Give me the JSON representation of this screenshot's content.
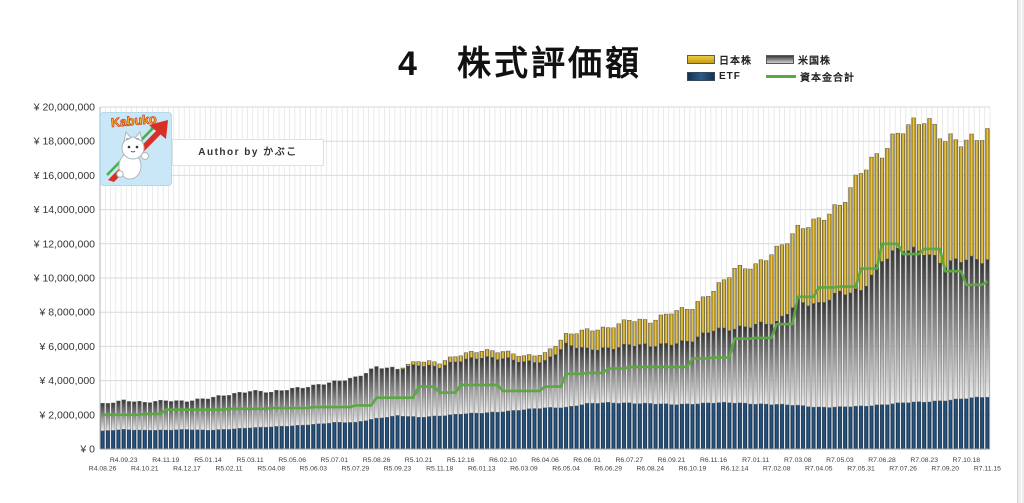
{
  "page": {
    "title": "4　株式評価額"
  },
  "logo": {
    "text": "Kabuko"
  },
  "author_box": {
    "text": "Author by かぶこ"
  },
  "legend": {
    "items": [
      {
        "label": "日本株",
        "type": "swatch",
        "color": "#C9A227"
      },
      {
        "label": "米国株",
        "type": "swatch",
        "color": "#3A3A3A"
      },
      {
        "label": "ETF",
        "type": "swatch",
        "color": "#1F4568"
      },
      {
        "label": "資本金合計",
        "type": "line",
        "color": "#5BA843"
      }
    ]
  },
  "chart_data": {
    "type": "bar",
    "subtype": "stacked-weekly-bars-with-step-line",
    "title": "4　株式評価額",
    "unit": "million JPY",
    "n_bars": 169,
    "points_per_tick": 4,
    "interpolation": "bars: linear between 4-week anchor values; capital line: stepped at anchors",
    "y_axis": {
      "min_mil": 0,
      "max_mil": 20,
      "tick_interval_mil": 2,
      "tick_labels": [
        "¥ 0",
        "¥ 2,000,000",
        "¥ 4,000,000",
        "¥ 6,000,000",
        "¥ 8,000,000",
        "¥ 10,000,000",
        "¥ 12,000,000",
        "¥ 14,000,000",
        "¥ 16,000,000",
        "¥ 18,000,000",
        "¥ 20,000,000"
      ]
    },
    "x_axis": {
      "note": "weekly bars, one label every 4th bar; labels alternate lower/upper row starting lower",
      "tick_labels": [
        "R4.08.26",
        "R4.09.23",
        "R4.10.21",
        "R4.11.19",
        "R4.12.17",
        "R5.01.14",
        "R5.02.11",
        "R5.03.11",
        "R5.04.08",
        "R5.05.06",
        "R5.06.03",
        "R5.07.01",
        "R5.07.29",
        "R5.08.26",
        "R5.09.23",
        "R5.10.21",
        "R5.11.18",
        "R5.12.16",
        "R6.01.13",
        "R6.02.10",
        "R6.03.09",
        "R6.04.06",
        "R6.05.04",
        "R6.06.01",
        "R6.06.29",
        "R6.07.27",
        "R6.08.24",
        "R6.09.21",
        "R6.10.19",
        "R6.11.16",
        "R6.12.14",
        "R7.01.11",
        "R7.02.08",
        "R7.03.08",
        "R7.04.05",
        "R7.05.03",
        "R7.05.31",
        "R7.06.28",
        "R7.07.26",
        "R7.08.23",
        "R7.09.20",
        "R7.10.18",
        "R7.11.15"
      ]
    },
    "series": [
      {
        "name": "ETF",
        "role": "bar",
        "stack_order": 0,
        "color": "#1F4568",
        "anchors_mil": [
          1.05,
          1.15,
          1.1,
          1.1,
          1.15,
          1.1,
          1.15,
          1.25,
          1.3,
          1.35,
          1.45,
          1.55,
          1.55,
          1.8,
          1.95,
          1.85,
          1.95,
          2.05,
          2.1,
          2.2,
          2.3,
          2.4,
          2.45,
          2.65,
          2.7,
          2.7,
          2.65,
          2.6,
          2.65,
          2.7,
          2.7,
          2.65,
          2.6,
          2.55,
          2.45,
          2.45,
          2.5,
          2.6,
          2.7,
          2.75,
          2.85,
          2.95,
          3.05
        ]
      },
      {
        "name": "米国株",
        "role": "bar",
        "stack_order": 1,
        "color": "#3A3A3A",
        "anchors_mil": [
          1.6,
          1.7,
          1.6,
          1.75,
          1.65,
          1.85,
          2.05,
          2.15,
          2.0,
          2.2,
          2.25,
          2.35,
          2.65,
          3.0,
          2.7,
          3.1,
          2.85,
          3.1,
          3.3,
          3.1,
          2.75,
          2.75,
          3.65,
          3.15,
          3.2,
          3.4,
          3.35,
          3.6,
          3.7,
          4.25,
          4.4,
          4.6,
          4.75,
          6.15,
          5.95,
          6.65,
          6.85,
          8.4,
          9.0,
          8.9,
          7.85,
          8.15,
          8.1
        ]
      },
      {
        "name": "日本株",
        "role": "bar",
        "stack_order": 2,
        "color": "#C9A227",
        "anchors_mil": [
          0,
          0,
          0,
          0,
          0,
          0,
          0,
          0,
          0,
          0,
          0,
          0,
          0,
          0,
          0,
          0.25,
          0.25,
          0.35,
          0.4,
          0.4,
          0.35,
          0.45,
          0.55,
          1.15,
          1.2,
          1.45,
          1.45,
          1.85,
          1.9,
          2.35,
          3.45,
          3.4,
          4.35,
          4.2,
          4.9,
          5.2,
          6.95,
          6.2,
          7.2,
          7.7,
          7.3,
          7.0,
          7.35
        ]
      },
      {
        "name": "資本金合計",
        "role": "line",
        "color": "#5BA843",
        "anchors_mil": [
          2.0,
          2.0,
          2.05,
          2.3,
          2.3,
          2.3,
          2.35,
          2.35,
          2.4,
          2.4,
          2.45,
          2.45,
          2.55,
          3.0,
          3.0,
          3.65,
          3.3,
          3.75,
          3.75,
          3.4,
          3.4,
          3.65,
          4.4,
          4.45,
          4.7,
          4.8,
          4.8,
          4.8,
          5.3,
          5.35,
          6.45,
          6.5,
          7.3,
          8.9,
          9.45,
          9.5,
          10.55,
          12.0,
          11.4,
          11.7,
          10.4,
          9.6,
          9.8
        ]
      }
    ]
  },
  "colors": {
    "gold": "#C9A227",
    "gray_top": "#3A3A3A",
    "gray_bottom": "#E9E9E9",
    "navy": "#1F4568",
    "green": "#5BA843",
    "gridline": "#D9D9D9"
  }
}
